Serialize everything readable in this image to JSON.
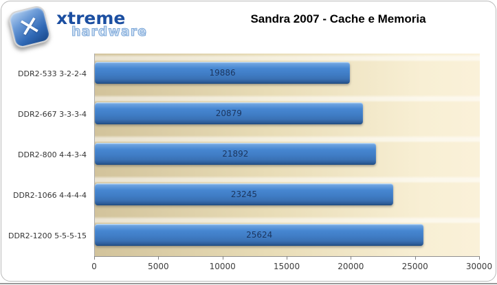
{
  "page": {
    "background": "#ffffff",
    "card_border_color": "#b9b9b9",
    "bottom_rule_color": "#9a9a9a"
  },
  "header": {
    "logo": {
      "icon": "x-tile-icon",
      "x_glyph": "✕",
      "line1": "xtreme",
      "line2": "hardware",
      "color_primary": "#1c4fa1",
      "color_secondary": "#7aa6d8"
    },
    "title": "Sandra 2007 - Cache e Memoria"
  },
  "chart_data": {
    "type": "bar",
    "orientation": "horizontal",
    "title": "Sandra 2007 - Cache e Memoria",
    "categories": [
      "DDR2-533 3-2-2-4",
      "DDR2-667 3-3-3-4",
      "DDR2-800 4-4-3-4",
      "DDR2-1066 4-4-4-4",
      "DDR2-1200 5-5-5-15"
    ],
    "values": [
      19886,
      20879,
      21892,
      23245,
      25624
    ],
    "value_labels": [
      "19886",
      "20879",
      "21892",
      "23245",
      "25624"
    ],
    "xlabel": "",
    "ylabel": "",
    "xlim": [
      0,
      30000
    ],
    "x_ticks": [
      0,
      5000,
      10000,
      15000,
      20000,
      25000,
      30000
    ],
    "grid": false,
    "legend": "none",
    "bar_color_main": "#4282cc",
    "bar_color_dark": "#1f4a7e",
    "bar_color_light": "#a6cdf0",
    "value_label_color": "#1b355e",
    "plot_bg_left": "#d2c39b",
    "plot_bg_right": "#faf1d9",
    "axis_color": "#8f8f8f",
    "tick_label_color": "#3c3c3c"
  }
}
